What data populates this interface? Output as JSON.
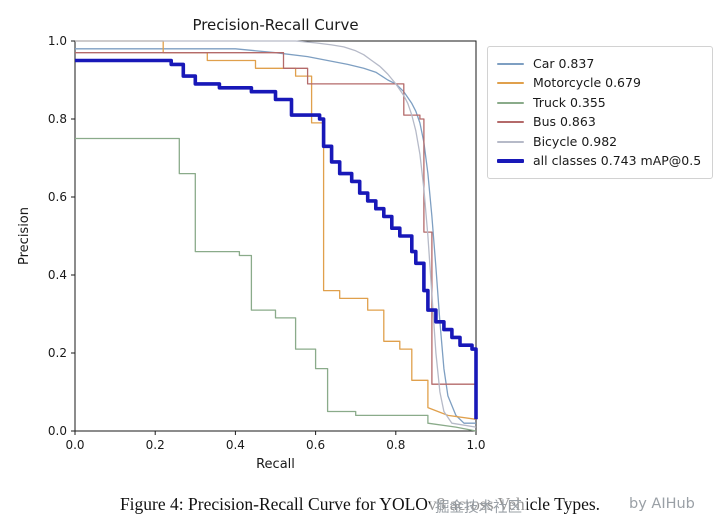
{
  "chart_data": {
    "type": "line",
    "title": "Precision-Recall Curve",
    "xlabel": "Recall",
    "ylabel": "Precision",
    "xlim": [
      0,
      1
    ],
    "ylim": [
      0,
      1
    ],
    "xticks": [
      0.0,
      0.2,
      0.4,
      0.6,
      0.8,
      1.0
    ],
    "yticks": [
      0.0,
      0.2,
      0.4,
      0.6,
      0.8,
      1.0
    ],
    "grid": false,
    "legend_position": "outside-top-right",
    "series": [
      {
        "name": "Car",
        "ap": 0.837,
        "label": "Car 0.837",
        "color": "#7e9fc2",
        "width": 1.3,
        "points": [
          [
            0.0,
            0.98
          ],
          [
            0.4,
            0.98
          ],
          [
            0.5,
            0.97
          ],
          [
            0.58,
            0.96
          ],
          [
            0.63,
            0.95
          ],
          [
            0.68,
            0.94
          ],
          [
            0.72,
            0.93
          ],
          [
            0.75,
            0.92
          ],
          [
            0.78,
            0.9
          ],
          [
            0.8,
            0.89
          ],
          [
            0.82,
            0.87
          ],
          [
            0.84,
            0.84
          ],
          [
            0.85,
            0.82
          ],
          [
            0.86,
            0.79
          ],
          [
            0.87,
            0.74
          ],
          [
            0.88,
            0.66
          ],
          [
            0.89,
            0.55
          ],
          [
            0.9,
            0.42
          ],
          [
            0.91,
            0.28
          ],
          [
            0.92,
            0.16
          ],
          [
            0.93,
            0.09
          ],
          [
            0.95,
            0.04
          ],
          [
            0.97,
            0.02
          ],
          [
            1.0,
            0.02
          ]
        ]
      },
      {
        "name": "Motorcycle",
        "ap": 0.679,
        "label": "Motorcycle 0.679",
        "color": "#e0a04c",
        "width": 1.3,
        "points": [
          [
            0.0,
            1.0
          ],
          [
            0.22,
            1.0
          ],
          [
            0.22,
            0.97
          ],
          [
            0.33,
            0.97
          ],
          [
            0.33,
            0.95
          ],
          [
            0.45,
            0.95
          ],
          [
            0.45,
            0.93
          ],
          [
            0.55,
            0.93
          ],
          [
            0.55,
            0.91
          ],
          [
            0.59,
            0.91
          ],
          [
            0.59,
            0.79
          ],
          [
            0.62,
            0.79
          ],
          [
            0.62,
            0.36
          ],
          [
            0.66,
            0.36
          ],
          [
            0.66,
            0.34
          ],
          [
            0.73,
            0.34
          ],
          [
            0.73,
            0.31
          ],
          [
            0.77,
            0.31
          ],
          [
            0.77,
            0.23
          ],
          [
            0.81,
            0.23
          ],
          [
            0.81,
            0.21
          ],
          [
            0.84,
            0.21
          ],
          [
            0.84,
            0.13
          ],
          [
            0.88,
            0.13
          ],
          [
            0.88,
            0.06
          ],
          [
            0.93,
            0.04
          ],
          [
            1.0,
            0.03
          ]
        ]
      },
      {
        "name": "Truck",
        "ap": 0.355,
        "label": "Truck 0.355",
        "color": "#8aab8a",
        "width": 1.3,
        "points": [
          [
            0.0,
            0.75
          ],
          [
            0.26,
            0.75
          ],
          [
            0.26,
            0.66
          ],
          [
            0.3,
            0.66
          ],
          [
            0.3,
            0.46
          ],
          [
            0.41,
            0.46
          ],
          [
            0.41,
            0.45
          ],
          [
            0.44,
            0.45
          ],
          [
            0.44,
            0.31
          ],
          [
            0.5,
            0.31
          ],
          [
            0.5,
            0.29
          ],
          [
            0.55,
            0.29
          ],
          [
            0.55,
            0.21
          ],
          [
            0.6,
            0.21
          ],
          [
            0.6,
            0.16
          ],
          [
            0.63,
            0.16
          ],
          [
            0.63,
            0.05
          ],
          [
            0.7,
            0.05
          ],
          [
            0.7,
            0.04
          ],
          [
            0.88,
            0.04
          ],
          [
            0.88,
            0.02
          ],
          [
            0.95,
            0.01
          ],
          [
            1.0,
            0.0
          ]
        ]
      },
      {
        "name": "Bus",
        "ap": 0.863,
        "label": "Bus 0.863",
        "color": "#b46a6a",
        "width": 1.3,
        "points": [
          [
            0.0,
            0.97
          ],
          [
            0.52,
            0.97
          ],
          [
            0.52,
            0.93
          ],
          [
            0.58,
            0.93
          ],
          [
            0.58,
            0.89
          ],
          [
            0.82,
            0.89
          ],
          [
            0.82,
            0.81
          ],
          [
            0.86,
            0.81
          ],
          [
            0.86,
            0.8
          ],
          [
            0.87,
            0.8
          ],
          [
            0.87,
            0.51
          ],
          [
            0.89,
            0.51
          ],
          [
            0.89,
            0.12
          ],
          [
            1.0,
            0.12
          ]
        ]
      },
      {
        "name": "Bicycle",
        "ap": 0.982,
        "label": "Bicycle 0.982",
        "color": "#b6bac8",
        "width": 1.3,
        "points": [
          [
            0.0,
            1.0
          ],
          [
            0.55,
            1.0
          ],
          [
            0.6,
            0.995
          ],
          [
            0.64,
            0.99
          ],
          [
            0.67,
            0.985
          ],
          [
            0.7,
            0.975
          ],
          [
            0.72,
            0.965
          ],
          [
            0.74,
            0.95
          ],
          [
            0.76,
            0.935
          ],
          [
            0.78,
            0.915
          ],
          [
            0.8,
            0.89
          ],
          [
            0.82,
            0.86
          ],
          [
            0.83,
            0.84
          ],
          [
            0.84,
            0.81
          ],
          [
            0.85,
            0.77
          ],
          [
            0.86,
            0.71
          ],
          [
            0.87,
            0.62
          ],
          [
            0.88,
            0.5
          ],
          [
            0.89,
            0.35
          ],
          [
            0.9,
            0.2
          ],
          [
            0.91,
            0.1
          ],
          [
            0.92,
            0.05
          ],
          [
            0.94,
            0.02
          ],
          [
            1.0,
            0.01
          ]
        ]
      },
      {
        "name": "all classes",
        "ap": 0.743,
        "label": "all classes 0.743 mAP@0.5",
        "color": "#1818b8",
        "width": 3.6,
        "points": [
          [
            0.0,
            0.95
          ],
          [
            0.24,
            0.95
          ],
          [
            0.24,
            0.94
          ],
          [
            0.27,
            0.94
          ],
          [
            0.27,
            0.91
          ],
          [
            0.3,
            0.91
          ],
          [
            0.3,
            0.89
          ],
          [
            0.36,
            0.89
          ],
          [
            0.36,
            0.88
          ],
          [
            0.44,
            0.88
          ],
          [
            0.44,
            0.87
          ],
          [
            0.5,
            0.87
          ],
          [
            0.5,
            0.85
          ],
          [
            0.54,
            0.85
          ],
          [
            0.54,
            0.81
          ],
          [
            0.61,
            0.81
          ],
          [
            0.61,
            0.8
          ],
          [
            0.62,
            0.8
          ],
          [
            0.62,
            0.73
          ],
          [
            0.64,
            0.73
          ],
          [
            0.64,
            0.69
          ],
          [
            0.66,
            0.69
          ],
          [
            0.66,
            0.66
          ],
          [
            0.69,
            0.66
          ],
          [
            0.69,
            0.64
          ],
          [
            0.71,
            0.64
          ],
          [
            0.71,
            0.61
          ],
          [
            0.73,
            0.61
          ],
          [
            0.73,
            0.59
          ],
          [
            0.75,
            0.59
          ],
          [
            0.75,
            0.57
          ],
          [
            0.77,
            0.57
          ],
          [
            0.77,
            0.55
          ],
          [
            0.79,
            0.55
          ],
          [
            0.79,
            0.52
          ],
          [
            0.81,
            0.52
          ],
          [
            0.81,
            0.5
          ],
          [
            0.84,
            0.5
          ],
          [
            0.84,
            0.46
          ],
          [
            0.85,
            0.46
          ],
          [
            0.85,
            0.43
          ],
          [
            0.87,
            0.43
          ],
          [
            0.87,
            0.36
          ],
          [
            0.88,
            0.36
          ],
          [
            0.88,
            0.31
          ],
          [
            0.9,
            0.31
          ],
          [
            0.9,
            0.28
          ],
          [
            0.92,
            0.28
          ],
          [
            0.92,
            0.26
          ],
          [
            0.94,
            0.26
          ],
          [
            0.94,
            0.24
          ],
          [
            0.96,
            0.24
          ],
          [
            0.96,
            0.22
          ],
          [
            0.99,
            0.22
          ],
          [
            0.99,
            0.21
          ],
          [
            1.0,
            0.21
          ],
          [
            1.0,
            0.03
          ]
        ]
      }
    ]
  },
  "caption": {
    "text": "Figure 4: Precision-Recall Curve for YOLOv8 across Vehicle Types."
  },
  "watermark": {
    "primary": "掘金技术社区",
    "secondary": "by AIHub"
  }
}
